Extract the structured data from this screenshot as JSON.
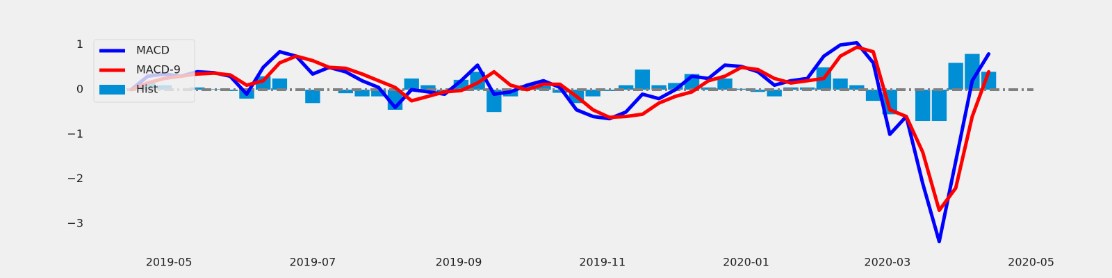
{
  "chart_data": {
    "type": "macd",
    "x": [
      "2019-04-15",
      "2019-04-22",
      "2019-04-29",
      "2019-05-06",
      "2019-05-13",
      "2019-05-20",
      "2019-05-27",
      "2019-06-03",
      "2019-06-10",
      "2019-06-17",
      "2019-06-24",
      "2019-07-01",
      "2019-07-08",
      "2019-07-15",
      "2019-07-22",
      "2019-07-29",
      "2019-08-05",
      "2019-08-12",
      "2019-08-19",
      "2019-08-26",
      "2019-09-02",
      "2019-09-09",
      "2019-09-16",
      "2019-09-23",
      "2019-09-30",
      "2019-10-07",
      "2019-10-14",
      "2019-10-21",
      "2019-10-28",
      "2019-11-04",
      "2019-11-11",
      "2019-11-18",
      "2019-11-25",
      "2019-12-02",
      "2019-12-09",
      "2019-12-16",
      "2019-12-23",
      "2019-12-30",
      "2020-01-06",
      "2020-01-13",
      "2020-01-20",
      "2020-01-27",
      "2020-02-03",
      "2020-02-10",
      "2020-02-17",
      "2020-02-24",
      "2020-03-02",
      "2020-03-09",
      "2020-03-16",
      "2020-03-23",
      "2020-03-30",
      "2020-04-06",
      "2020-04-13"
    ],
    "series": [
      {
        "name": "MACD",
        "kind": "line",
        "color": "#0000ff",
        "values": [
          0,
          0.3,
          0.35,
          0.3,
          0.4,
          0.38,
          0.3,
          -0.1,
          0.5,
          0.85,
          0.75,
          0.35,
          0.5,
          0.4,
          0.2,
          0.05,
          -0.4,
          0,
          -0.05,
          -0.1,
          0.2,
          0.55,
          -0.1,
          -0.05,
          0.1,
          0.2,
          0.05,
          -0.45,
          -0.6,
          -0.65,
          -0.5,
          -0.1,
          -0.2,
          0,
          0.3,
          0.25,
          0.55,
          0.52,
          0.4,
          0.1,
          0.2,
          0.25,
          0.75,
          1.0,
          1.05,
          0.6,
          -1.0,
          -0.6,
          -2.1,
          -3.4,
          -1.6,
          0.2,
          0.8
        ]
      },
      {
        "name": "MACD-9",
        "kind": "line",
        "color": "#ff0000",
        "values": [
          0,
          0.15,
          0.25,
          0.3,
          0.35,
          0.37,
          0.33,
          0.1,
          0.2,
          0.6,
          0.75,
          0.65,
          0.5,
          0.48,
          0.35,
          0.2,
          0.05,
          -0.25,
          -0.15,
          -0.05,
          -0.02,
          0.15,
          0.4,
          0.1,
          0,
          0.12,
          0.12,
          -0.15,
          -0.45,
          -0.62,
          -0.6,
          -0.55,
          -0.3,
          -0.15,
          -0.05,
          0.2,
          0.3,
          0.5,
          0.45,
          0.25,
          0.15,
          0.2,
          0.25,
          0.75,
          0.95,
          0.85,
          -0.45,
          -0.6,
          -1.4,
          -2.7,
          -2.2,
          -0.6,
          0.4
        ]
      },
      {
        "name": "Hist",
        "kind": "bar",
        "color": "#008fd5",
        "values": [
          0,
          0.15,
          0.1,
          0,
          0.05,
          0.01,
          -0.03,
          -0.2,
          0.3,
          0.25,
          0,
          -0.3,
          0,
          -0.08,
          -0.15,
          -0.15,
          -0.45,
          0.25,
          0.1,
          -0.05,
          0.22,
          0.4,
          -0.5,
          -0.15,
          0.1,
          0.08,
          -0.07,
          -0.3,
          -0.15,
          -0.03,
          0.1,
          0.45,
          0.1,
          0.15,
          0.35,
          0.05,
          0.25,
          0.02,
          -0.05,
          -0.15,
          0.05,
          0.05,
          0.5,
          0.25,
          0.1,
          -0.25,
          -0.55,
          0,
          -0.7,
          -0.7,
          0.6,
          0.8,
          0.4
        ]
      }
    ],
    "xlim": [
      "2019-04-05",
      "2020-05-02"
    ],
    "xticks": [
      "2019-05",
      "2019-07",
      "2019-09",
      "2019-11",
      "2020-01",
      "2020-03",
      "2020-05"
    ],
    "ylim": [
      -3.6,
      1.4
    ],
    "yticks": [
      {
        "value": -3,
        "label": "−3"
      },
      {
        "value": -2,
        "label": "−2"
      },
      {
        "value": -1,
        "label": "−1"
      },
      0,
      1
    ],
    "grid": false,
    "legend": "upper left"
  }
}
